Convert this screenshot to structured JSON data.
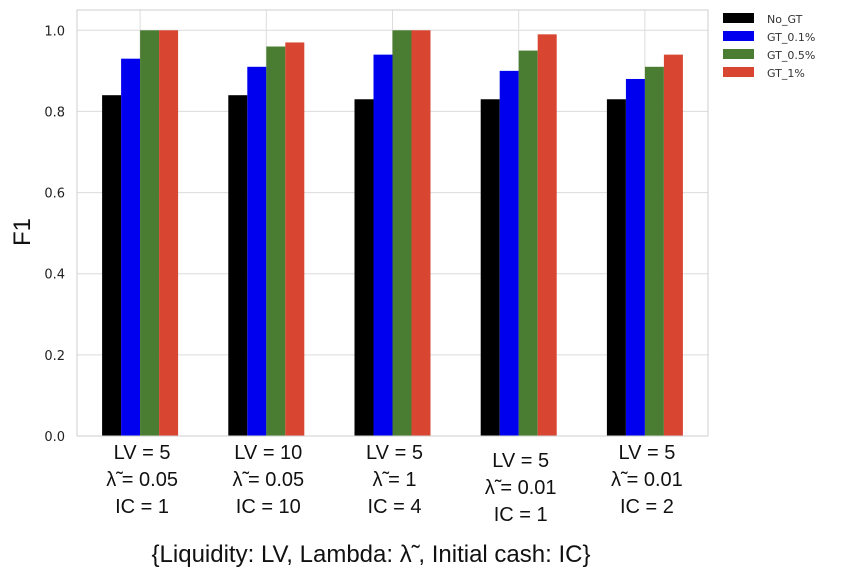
{
  "chart_data": {
    "type": "bar",
    "ylabel": "F1",
    "xlabel": "",
    "ylim": [
      0,
      1.05
    ],
    "yticks": [
      "0.0",
      "0.2",
      "0.4",
      "0.6",
      "0.8",
      "1.0"
    ],
    "grid": true,
    "legend_position": "top-right",
    "categories": [
      [
        "LV = 5",
        "λ̃  = 0.05",
        "IC = 1"
      ],
      [
        "LV = 10",
        "λ̃  = 0.05",
        "IC = 10"
      ],
      [
        "LV = 5",
        "λ̃  = 1",
        "IC = 4"
      ],
      [
        "LV = 5",
        "λ̃  = 0.01",
        "IC = 1"
      ],
      [
        "LV = 5",
        "λ̃  = 0.01",
        "IC = 2"
      ]
    ],
    "series": [
      {
        "name": "No_GT",
        "color": "#000000",
        "values": [
          0.84,
          0.84,
          0.83,
          0.83,
          0.83
        ]
      },
      {
        "name": "GT_0.1%",
        "color": "#0000ee",
        "values": [
          0.93,
          0.91,
          0.94,
          0.9,
          0.88
        ]
      },
      {
        "name": "GT_0.5%",
        "color": "#4a7d32",
        "values": [
          1.0,
          0.96,
          1.0,
          0.95,
          0.91
        ]
      },
      {
        "name": "GT_1%",
        "color": "#d84530",
        "values": [
          1.0,
          0.97,
          1.0,
          0.99,
          0.94
        ]
      }
    ],
    "caption": "{Liquidity: LV, Lambda: λ̃ , Initial cash: IC}"
  }
}
